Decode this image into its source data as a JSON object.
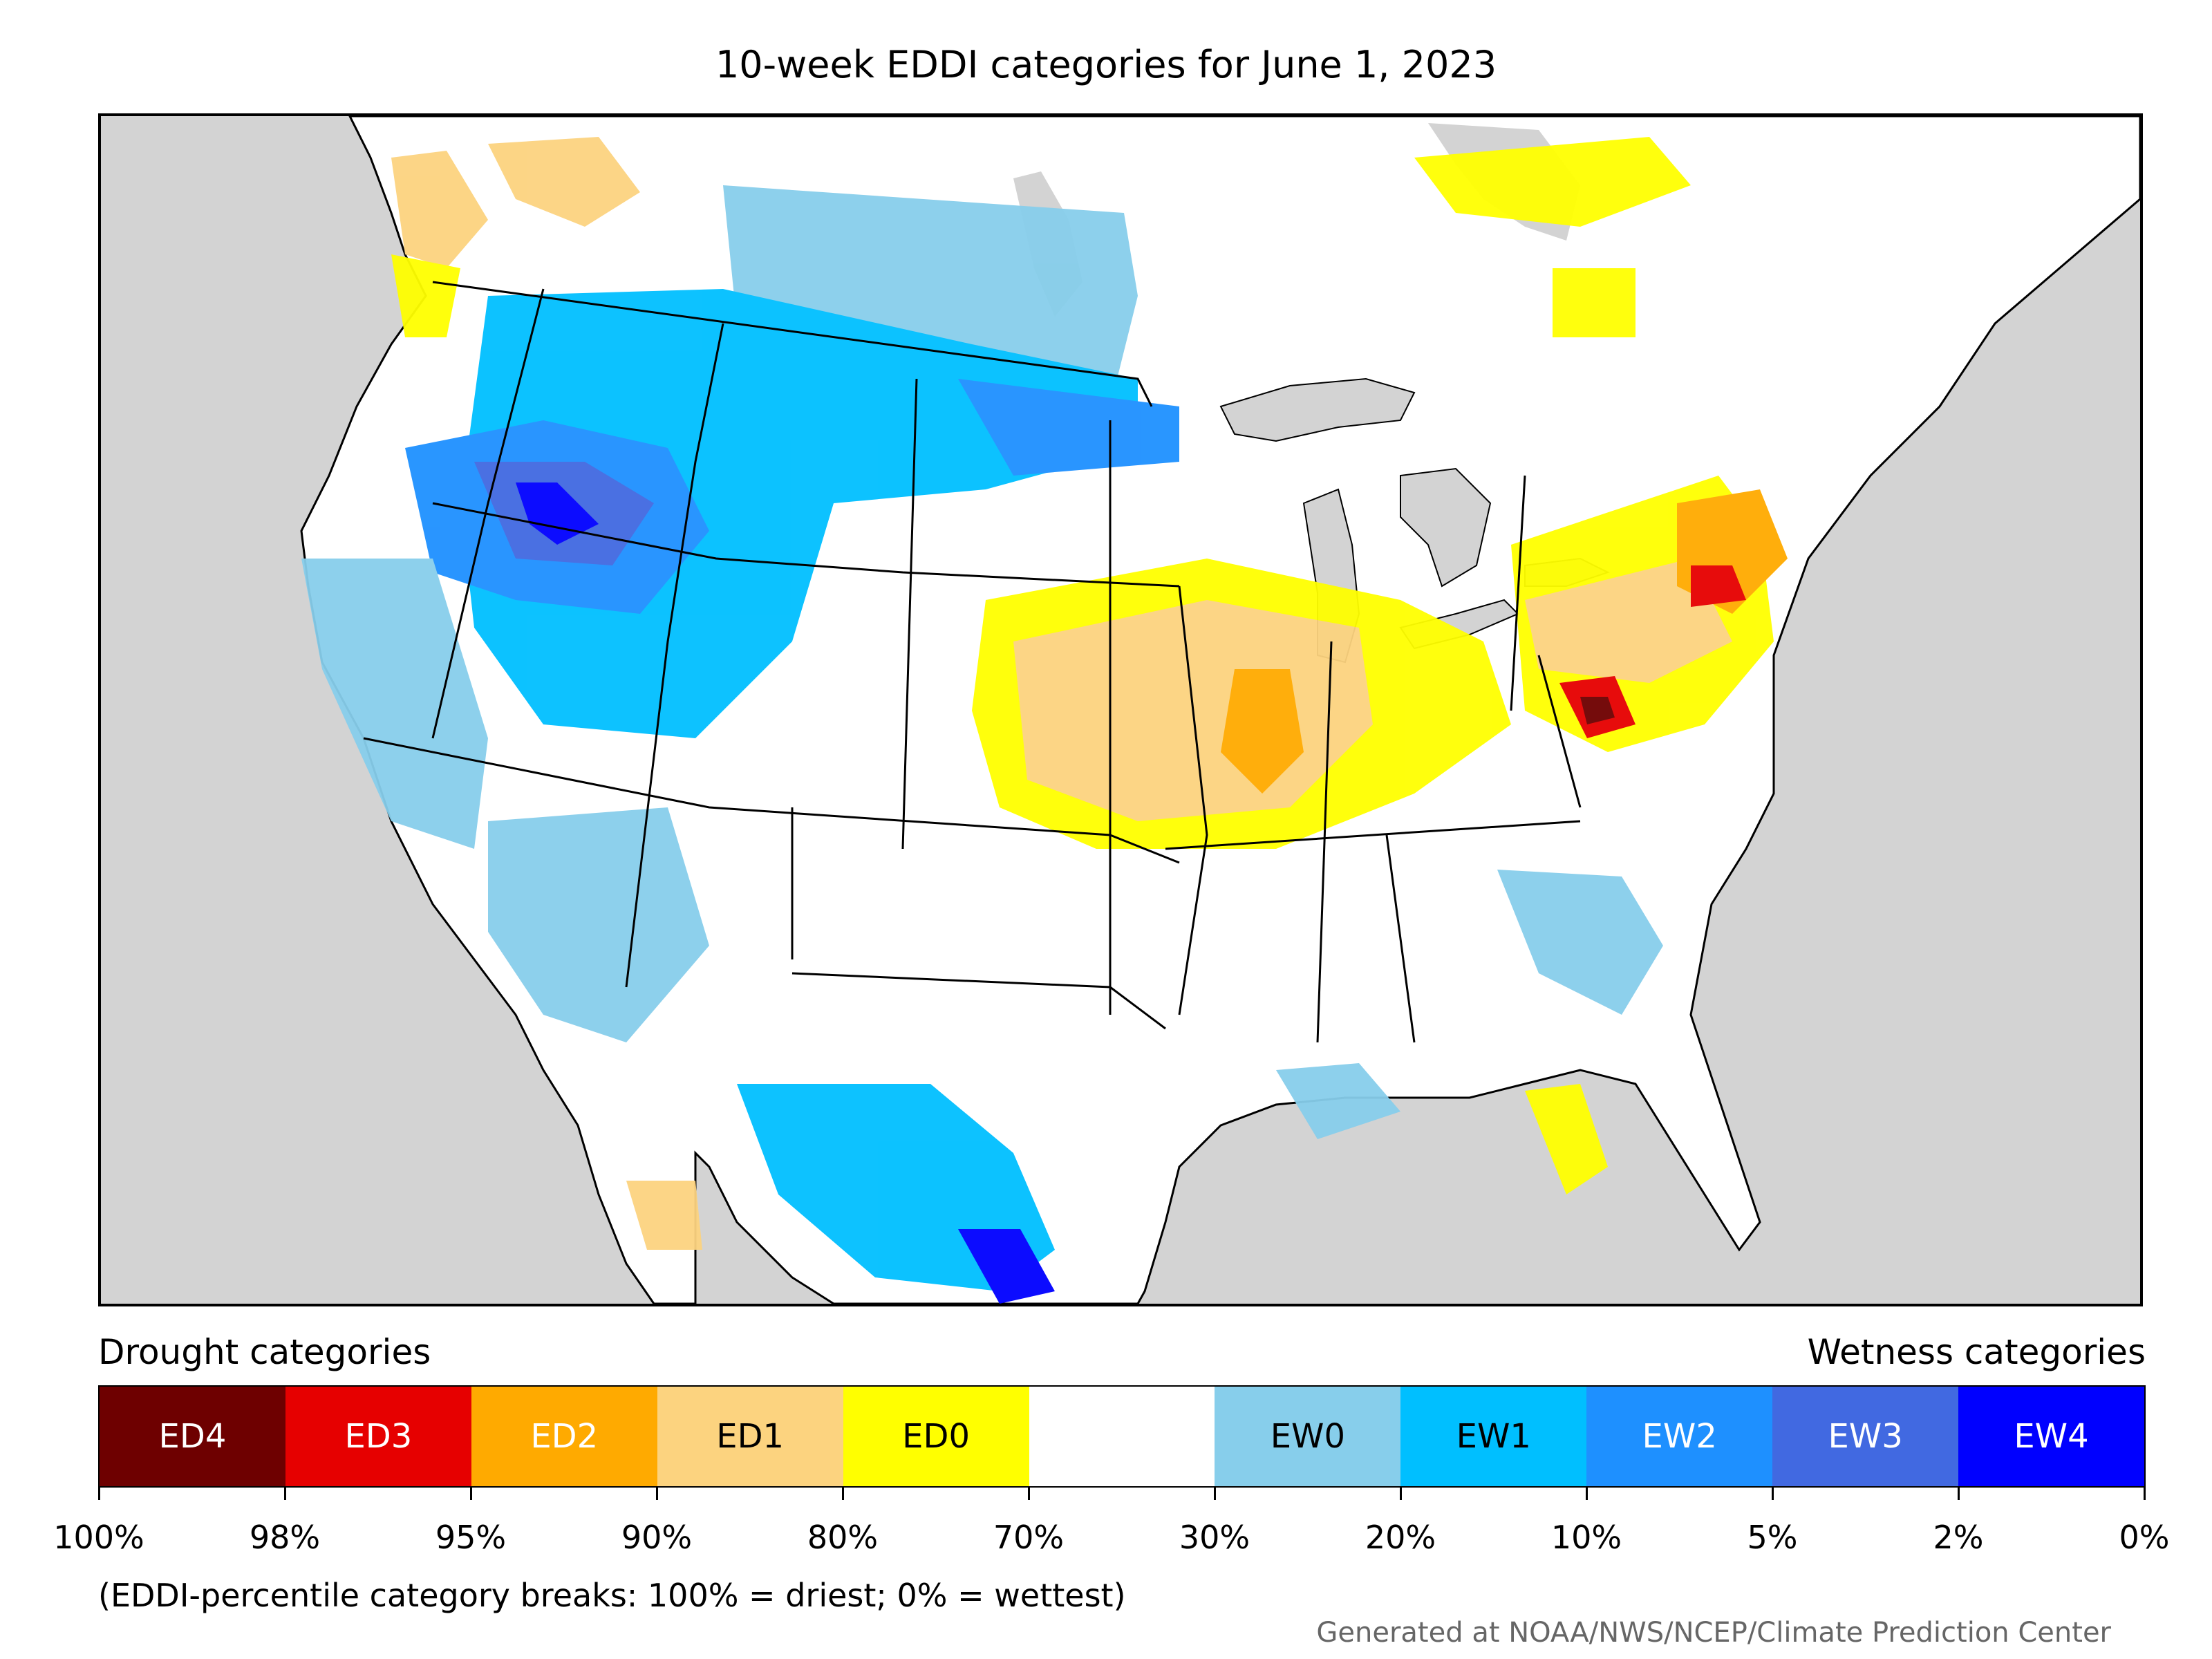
{
  "title": "10-week EDDI categories for June 1, 2023",
  "legend": {
    "drought_label": "Drought categories",
    "wetness_label": "Wetness categories",
    "categories": [
      {
        "label": "ED4",
        "color": "#6e0000",
        "text_color": "#ffffff"
      },
      {
        "label": "ED3",
        "color": "#e60000",
        "text_color": "#ffffff"
      },
      {
        "label": "ED2",
        "color": "#ffaa00",
        "text_color": "#ffffff"
      },
      {
        "label": "ED1",
        "color": "#fcd37f",
        "text_color": "#000000"
      },
      {
        "label": "ED0",
        "color": "#ffff00",
        "text_color": "#000000"
      },
      {
        "label": "",
        "color": "#ffffff",
        "text_color": "#000000"
      },
      {
        "label": "EW0",
        "color": "#87ceeb",
        "text_color": "#000000"
      },
      {
        "label": "EW1",
        "color": "#00bfff",
        "text_color": "#000000"
      },
      {
        "label": "EW2",
        "color": "#1e90ff",
        "text_color": "#ffffff"
      },
      {
        "label": "EW3",
        "color": "#4169e1",
        "text_color": "#ffffff"
      },
      {
        "label": "EW4",
        "color": "#0000ff",
        "text_color": "#ffffff"
      }
    ],
    "ticks": [
      "100%",
      "98%",
      "95%",
      "90%",
      "80%",
      "70%",
      "30%",
      "20%",
      "10%",
      "5%",
      "2%",
      "0%"
    ]
  },
  "note": "(EDDI-percentile category breaks: 100% = driest; 0% = wettest)",
  "credit": "Generated at NOAA/NWS/NCEP/Climate Prediction Center",
  "map_colors": {
    "ocean": "#d3d3d3",
    "land": "#ffffff",
    "border": "#000000"
  }
}
